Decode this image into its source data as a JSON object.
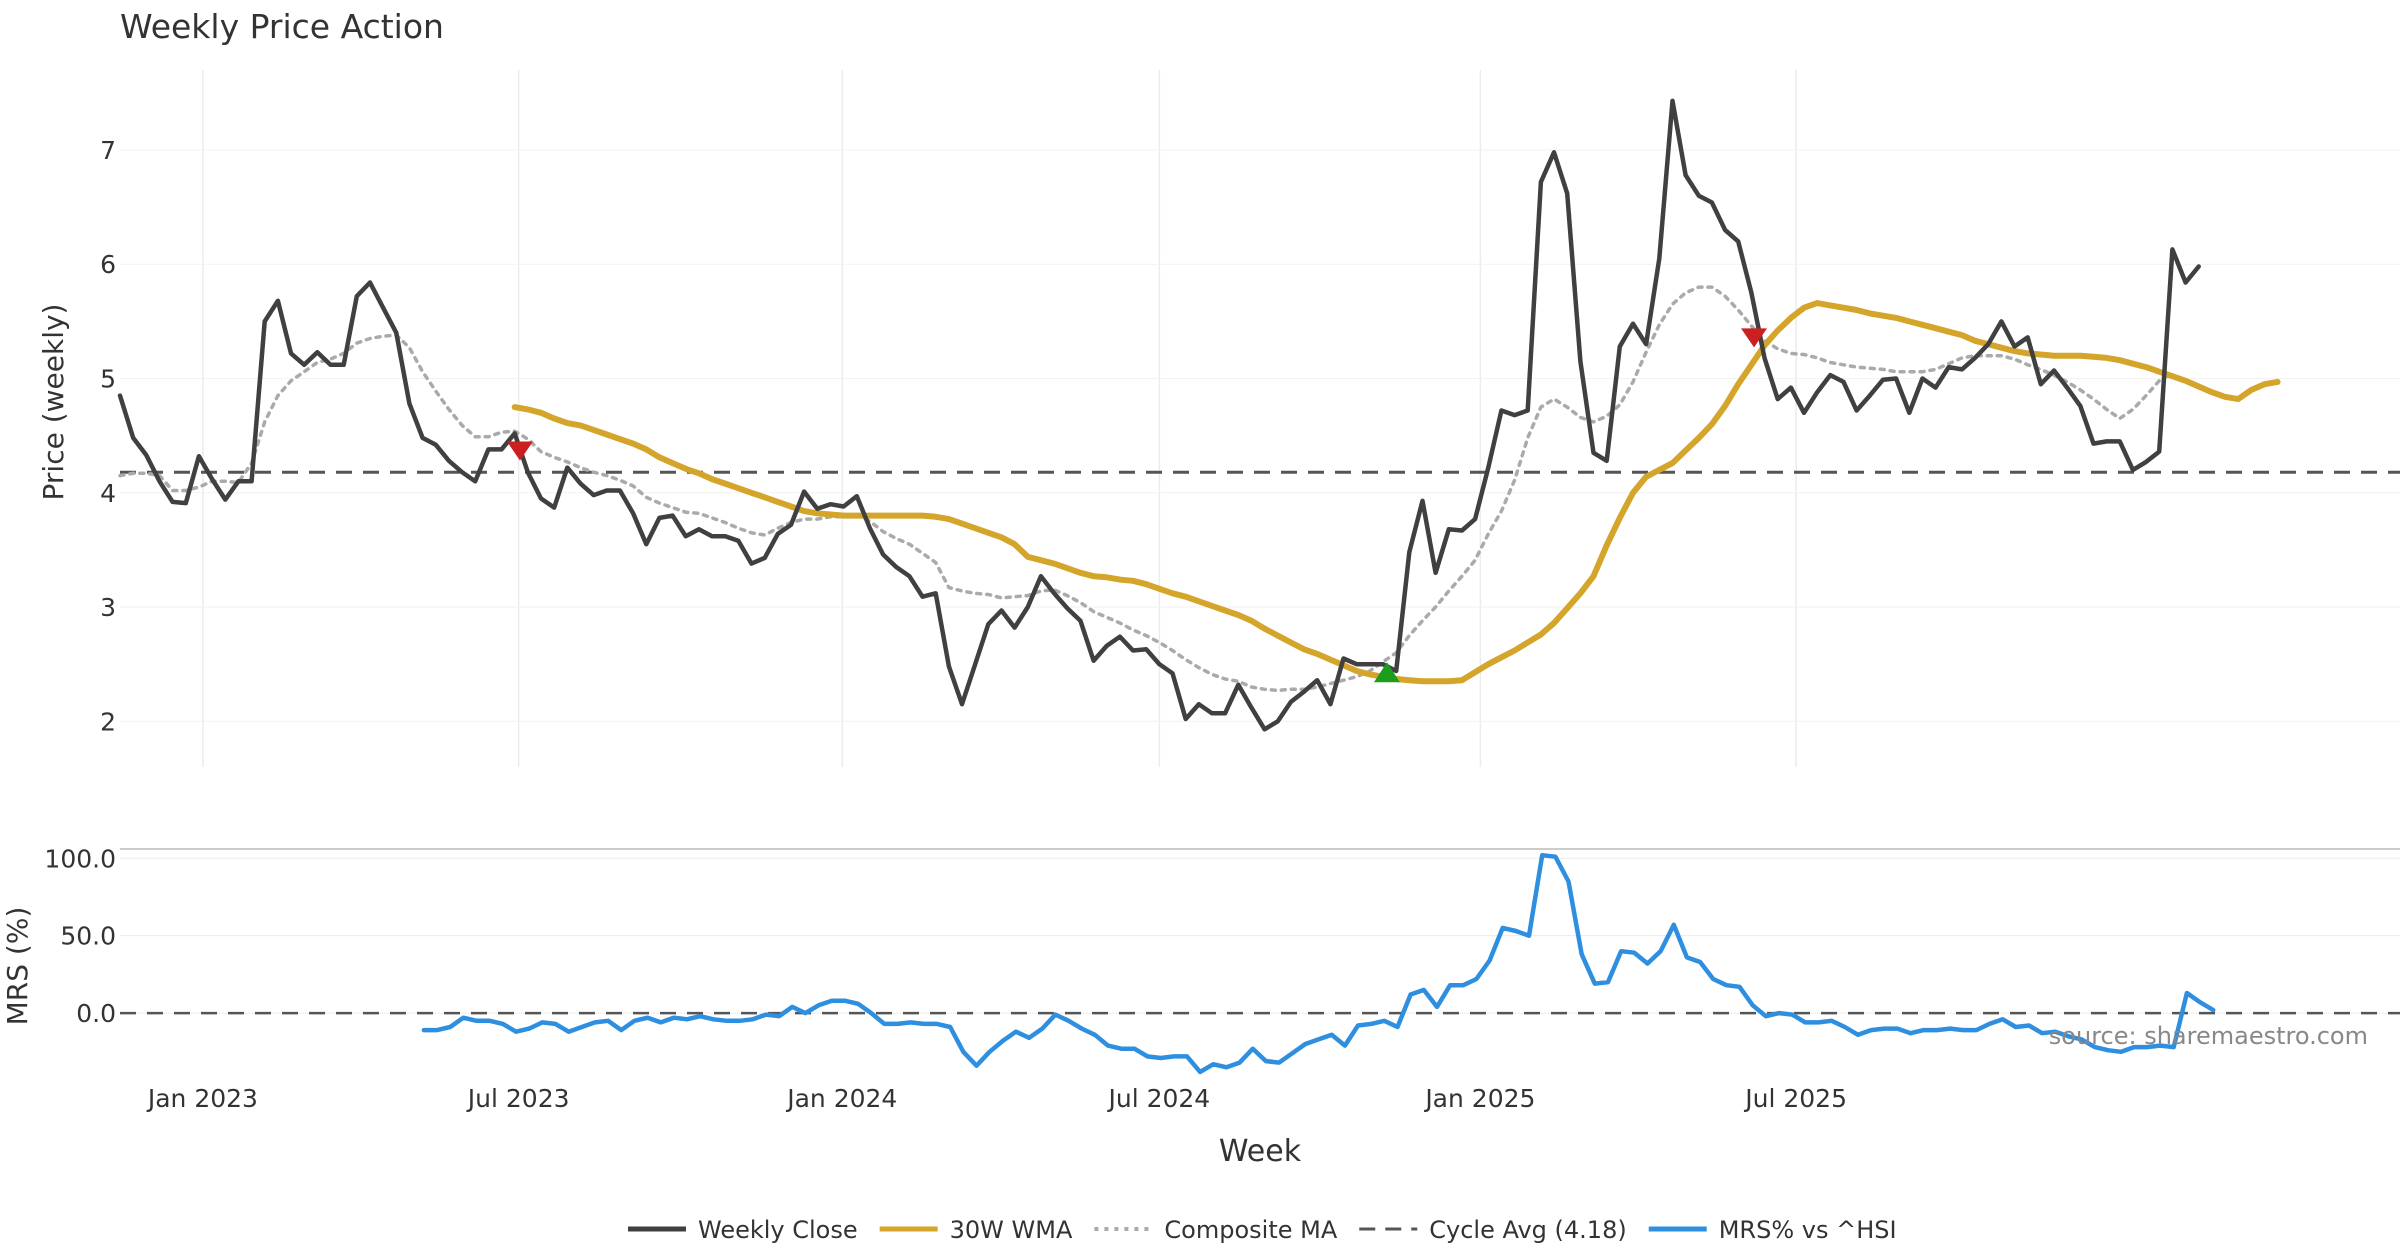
{
  "title": "Weekly Price Action",
  "source": "source: sharemaestro.com",
  "legend": {
    "items": [
      {
        "label": "Weekly Close",
        "color": "#404040",
        "style": "solid"
      },
      {
        "label": "30W WMA",
        "color": "#D4A52A",
        "style": "solid"
      },
      {
        "label": "Composite MA",
        "color": "#AAAAAA",
        "style": "dotted"
      },
      {
        "label": "Cycle Avg (4.18)",
        "color": "#555555",
        "style": "dashed"
      },
      {
        "label": "MRS% vs ^HSI",
        "color": "#2E8FE0",
        "style": "solid"
      }
    ]
  },
  "chart_data": [
    {
      "type": "line",
      "title": "Weekly Price Action",
      "ylabel": "Price (weekly)",
      "ylim": [
        1.6,
        7.7
      ],
      "yticks": [
        2,
        3,
        4,
        5,
        6,
        7
      ],
      "grid": true,
      "x_start_week": 0,
      "x_end_week": 173.3,
      "reference_line": {
        "label": "Cycle Avg (4.18)",
        "value": 4.18
      },
      "series": [
        {
          "name": "Weekly Close",
          "color": "#404040",
          "start_week": 0,
          "values": [
            4.85,
            4.48,
            4.33,
            4.1,
            3.92,
            3.91,
            4.32,
            4.12,
            3.94,
            4.1,
            4.1,
            5.5,
            5.68,
            5.22,
            5.12,
            5.23,
            5.12,
            5.12,
            5.72,
            5.84,
            5.62,
            5.4,
            4.78,
            4.48,
            4.42,
            4.28,
            4.18,
            4.1,
            4.38,
            4.38,
            4.52,
            4.18,
            3.95,
            3.87,
            4.22,
            4.08,
            3.98,
            4.02,
            4.02,
            3.82,
            3.55,
            3.78,
            3.8,
            3.62,
            3.68,
            3.62,
            3.62,
            3.58,
            3.38,
            3.43,
            3.64,
            3.72,
            4.01,
            3.86,
            3.9,
            3.88,
            3.97,
            3.69,
            3.46,
            3.35,
            3.27,
            3.09,
            3.12,
            2.48,
            2.15,
            2.5,
            2.85,
            2.97,
            2.82,
            3.0,
            3.27,
            3.12,
            2.99,
            2.88,
            2.53,
            2.66,
            2.74,
            2.62,
            2.63,
            2.5,
            2.42,
            2.02,
            2.15,
            2.07,
            2.07,
            2.32,
            2.12,
            1.93,
            2.0,
            2.17,
            2.26,
            2.36,
            2.15,
            2.55,
            2.5,
            2.5,
            2.5,
            2.44,
            3.48,
            3.93,
            3.3,
            3.68,
            3.67,
            3.77,
            4.22,
            4.72,
            4.68,
            4.72,
            6.72,
            6.98,
            6.62,
            5.15,
            4.35,
            4.28,
            5.28,
            5.48,
            5.3,
            6.05,
            7.43,
            6.78,
            6.6,
            6.54,
            6.3,
            6.2,
            5.75,
            5.18,
            4.82,
            4.92,
            4.7,
            4.88,
            5.03,
            4.97,
            4.72,
            4.85,
            4.99,
            5.0,
            4.7,
            5.0,
            4.92,
            5.1,
            5.08,
            5.18,
            5.3,
            5.5,
            5.28,
            5.36,
            4.95,
            5.07,
            4.92,
            4.76,
            4.43,
            4.45,
            4.45,
            4.2,
            4.27,
            4.36,
            6.13,
            5.84,
            5.98
          ]
        },
        {
          "name": "30W WMA",
          "color": "#D4A52A",
          "start_week": 30,
          "values": [
            4.75,
            4.73,
            4.7,
            4.65,
            4.61,
            4.59,
            4.55,
            4.51,
            4.47,
            4.43,
            4.38,
            4.31,
            4.26,
            4.21,
            4.17,
            4.12,
            4.08,
            4.04,
            4.0,
            3.96,
            3.92,
            3.88,
            3.84,
            3.82,
            3.81,
            3.8,
            3.8,
            3.8,
            3.8,
            3.8,
            3.8,
            3.8,
            3.79,
            3.77,
            3.73,
            3.69,
            3.65,
            3.61,
            3.55,
            3.44,
            3.41,
            3.38,
            3.34,
            3.3,
            3.27,
            3.26,
            3.24,
            3.23,
            3.2,
            3.16,
            3.12,
            3.09,
            3.05,
            3.01,
            2.97,
            2.93,
            2.88,
            2.81,
            2.75,
            2.69,
            2.63,
            2.59,
            2.54,
            2.49,
            2.44,
            2.41,
            2.39,
            2.37,
            2.36,
            2.35,
            2.35,
            2.35,
            2.36,
            2.43,
            2.5,
            2.56,
            2.62,
            2.69,
            2.76,
            2.86,
            2.99,
            3.12,
            3.27,
            3.54,
            3.78,
            4.0,
            4.14,
            4.2,
            4.26,
            4.37,
            4.48,
            4.6,
            4.76,
            4.95,
            5.12,
            5.29,
            5.42,
            5.53,
            5.62,
            5.66,
            5.64,
            5.62,
            5.6,
            5.57,
            5.55,
            5.53,
            5.5,
            5.47,
            5.44,
            5.41,
            5.38,
            5.33,
            5.3,
            5.27,
            5.24,
            5.22,
            5.21,
            5.2,
            5.2,
            5.2,
            5.19,
            5.18,
            5.16,
            5.13,
            5.1,
            5.06,
            5.02,
            4.98,
            4.93,
            4.88,
            4.84,
            4.82,
            4.9,
            4.95,
            4.97
          ]
        },
        {
          "name": "Composite MA",
          "color": "#AAAAAA",
          "start_week": 0,
          "values": [
            4.15,
            4.17,
            4.17,
            4.15,
            4.02,
            4.02,
            4.05,
            4.1,
            4.1,
            4.09,
            4.26,
            4.62,
            4.85,
            4.98,
            5.06,
            5.14,
            5.17,
            5.22,
            5.31,
            5.35,
            5.37,
            5.38,
            5.27,
            5.06,
            4.89,
            4.73,
            4.59,
            4.49,
            4.49,
            4.53,
            4.54,
            4.47,
            4.36,
            4.31,
            4.27,
            4.22,
            4.18,
            4.15,
            4.11,
            4.06,
            3.96,
            3.91,
            3.87,
            3.83,
            3.82,
            3.78,
            3.74,
            3.69,
            3.65,
            3.63,
            3.69,
            3.74,
            3.77,
            3.77,
            3.79,
            3.79,
            3.81,
            3.75,
            3.66,
            3.6,
            3.55,
            3.47,
            3.39,
            3.17,
            3.14,
            3.12,
            3.11,
            3.08,
            3.09,
            3.1,
            3.14,
            3.15,
            3.1,
            3.04,
            2.96,
            2.91,
            2.86,
            2.8,
            2.75,
            2.69,
            2.62,
            2.54,
            2.47,
            2.41,
            2.37,
            2.35,
            2.3,
            2.28,
            2.27,
            2.28,
            2.28,
            2.3,
            2.33,
            2.36,
            2.39,
            2.44,
            2.52,
            2.6,
            2.75,
            2.88,
            3.0,
            3.14,
            3.27,
            3.41,
            3.64,
            3.84,
            4.11,
            4.48,
            4.75,
            4.82,
            4.75,
            4.66,
            4.62,
            4.67,
            4.77,
            4.97,
            5.23,
            5.47,
            5.65,
            5.75,
            5.8,
            5.8,
            5.72,
            5.6,
            5.46,
            5.33,
            5.26,
            5.22,
            5.21,
            5.18,
            5.14,
            5.12,
            5.1,
            5.09,
            5.08,
            5.06,
            5.06,
            5.06,
            5.08,
            5.13,
            5.18,
            5.2,
            5.2,
            5.2,
            5.17,
            5.12,
            5.08,
            5.03,
            4.97,
            4.9,
            4.82,
            4.73,
            4.65,
            4.73,
            4.85,
            4.98,
            5.05
          ]
        }
      ],
      "markers": [
        {
          "type": "sell",
          "week": 30.4,
          "value": 4.37,
          "color": "#CC1F1F"
        },
        {
          "type": "buy",
          "week": 96.3,
          "value": 2.42,
          "color": "#1B9E1B"
        },
        {
          "type": "sell",
          "week": 124.2,
          "value": 5.36,
          "color": "#CC1F1F"
        }
      ]
    },
    {
      "type": "line",
      "ylabel": "MRS (%)",
      "xlabel": "Week",
      "ylim": [
        -40,
        106
      ],
      "yticks": [
        0,
        50,
        100
      ],
      "ytick_labels": [
        "0.0",
        "50.0",
        "100.0"
      ],
      "x_tick_labels": [
        "Jan 2023",
        "Jul 2023",
        "Jan 2024",
        "Jul 2024",
        "Jan 2025",
        "Jul 2025"
      ],
      "x_tick_weeks": [
        6.3,
        30.3,
        54.9,
        79.0,
        103.4,
        127.4
      ],
      "reference_line": {
        "value": 0
      },
      "series": [
        {
          "name": "MRS% vs ^HSI",
          "color": "#2E8FE0",
          "start_week": 23.1,
          "values": [
            -11,
            -11,
            -9,
            -3,
            -5,
            -5,
            -7,
            -12,
            -10,
            -6,
            -7,
            -12,
            -9,
            -6,
            -5,
            -11,
            -5,
            -3,
            -6,
            -3,
            -4,
            -2,
            -4,
            -5,
            -5,
            -4,
            -1,
            -2,
            4,
            0,
            5,
            8,
            8,
            6,
            0,
            -7,
            -7,
            -6,
            -7,
            -7,
            -9,
            -25,
            -34,
            -25,
            -18,
            -12,
            -16,
            -10,
            -1,
            -5,
            -10,
            -14,
            -21,
            -23,
            -23,
            -28,
            -29,
            -28,
            -28,
            -38,
            -33,
            -35,
            -32,
            -23,
            -31,
            -32,
            -26,
            -20,
            -17,
            -14,
            -21,
            -8,
            -7,
            -5,
            -9,
            12,
            15,
            4,
            18,
            18,
            22,
            34,
            55,
            53,
            50,
            102,
            101,
            85,
            38,
            19,
            20,
            40,
            39,
            32,
            40,
            57,
            36,
            33,
            22,
            18,
            17,
            5,
            -2,
            0,
            -1,
            -6,
            -6,
            -5,
            -9,
            -14,
            -11,
            -10,
            -10,
            -13,
            -11,
            -11,
            -10,
            -11,
            -11,
            -7,
            -4,
            -9,
            -8,
            -13,
            -12,
            -15,
            -17,
            -22,
            -24,
            -25,
            -22,
            -22,
            -21,
            -22,
            13,
            7,
            2
          ]
        }
      ]
    }
  ]
}
